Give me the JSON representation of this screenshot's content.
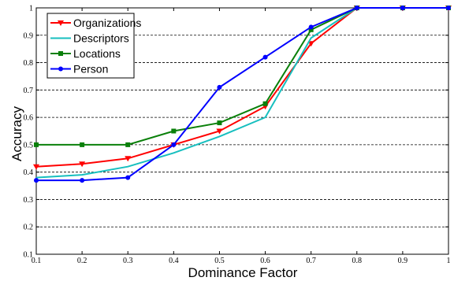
{
  "chart_data": {
    "type": "line",
    "xlabel": "Dominance Factor",
    "ylabel": "Accuracy",
    "xlim": [
      0.1,
      1
    ],
    "ylim": [
      0.1,
      1
    ],
    "x": [
      0.1,
      0.2,
      0.3,
      0.4,
      0.5,
      0.6,
      0.7,
      0.8,
      0.9,
      1
    ],
    "x_ticks": [
      "0.1",
      "0.2",
      "0.3",
      "0.4",
      "0.5",
      "0.6",
      "0.7",
      "0.8",
      "0.9",
      "1"
    ],
    "y_ticks": [
      "0.1",
      "0.2",
      "0.3",
      "0.4",
      "0.5",
      "0.6",
      "0.7",
      "0.8",
      "0.9",
      "1"
    ],
    "grid": "horizontal dashed",
    "legend_position": "top-left",
    "series": [
      {
        "name": "Organizations",
        "color": "#ff0000",
        "marker": "triangle-down",
        "values": [
          0.42,
          0.43,
          0.45,
          0.5,
          0.55,
          0.64,
          0.87,
          1.0,
          1.0,
          1.0
        ]
      },
      {
        "name": "Descriptors",
        "color": "#17bfbf",
        "marker": "none",
        "values": [
          0.38,
          0.39,
          0.42,
          0.47,
          0.53,
          0.6,
          0.89,
          1.0,
          1.0,
          1.0
        ]
      },
      {
        "name": "Locations",
        "color": "#0a800a",
        "marker": "square",
        "values": [
          0.5,
          0.5,
          0.5,
          0.55,
          0.58,
          0.65,
          0.92,
          1.0,
          1.0,
          1.0
        ]
      },
      {
        "name": "Person",
        "color": "#0000ff",
        "marker": "circle",
        "values": [
          0.37,
          0.37,
          0.38,
          0.5,
          0.71,
          0.82,
          0.93,
          1.0,
          1.0,
          1.0
        ]
      }
    ]
  }
}
